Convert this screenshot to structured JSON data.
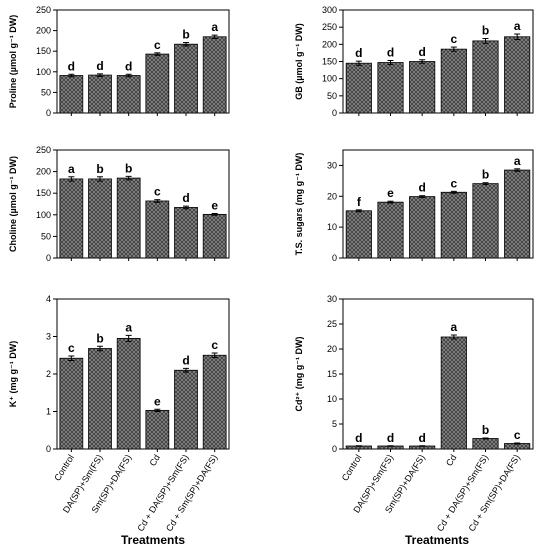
{
  "colors": {
    "bar_fill": "#8a8a8a",
    "bar_hatch": "#3a3a3a",
    "axis": "#000000"
  },
  "categories": [
    "Control",
    "DA(SP)+Sm(FS)",
    "Sm(SP)+DA(FS)",
    "Cd",
    "Cd + DA(SP)+Sm(FS)",
    "Cd + Sm(SP)+DA(FS)"
  ],
  "x_title": "Treatments",
  "chart_data": [
    {
      "type": "bar",
      "ylabel": "Proline (µmol g⁻¹ DW)",
      "ylim": [
        0,
        250
      ],
      "yticks": [
        0,
        50,
        100,
        150,
        200,
        250
      ],
      "categories": [
        "Control",
        "DA(SP)+Sm(FS)",
        "Sm(SP)+DA(FS)",
        "Cd",
        "Cd + DA(SP)+Sm(FS)",
        "Cd + Sm(SP)+DA(FS)"
      ],
      "values": [
        91,
        92,
        91,
        143,
        167,
        185
      ],
      "errors": [
        3,
        3,
        3,
        3,
        4,
        4
      ],
      "significance": [
        "d",
        "d",
        "d",
        "c",
        "b",
        "a"
      ]
    },
    {
      "type": "bar",
      "ylabel": "GB (µmol g⁻¹ DW)",
      "ylim": [
        0,
        300
      ],
      "yticks": [
        0,
        50,
        100,
        150,
        200,
        250,
        300
      ],
      "categories": [
        "Control",
        "DA(SP)+Sm(FS)",
        "Sm(SP)+DA(FS)",
        "Cd",
        "Cd + DA(SP)+Sm(FS)",
        "Cd + Sm(SP)+DA(FS)"
      ],
      "values": [
        145,
        147,
        150,
        186,
        210,
        222
      ],
      "errors": [
        6,
        6,
        5,
        6,
        7,
        8
      ],
      "significance": [
        "d",
        "d",
        "d",
        "c",
        "b",
        "a"
      ]
    },
    {
      "type": "bar",
      "ylabel": "Choline (µmol g⁻¹ DW)",
      "ylim": [
        0,
        250
      ],
      "yticks": [
        0,
        50,
        100,
        150,
        200,
        250
      ],
      "categories": [
        "Control",
        "DA(SP)+Sm(FS)",
        "Sm(SP)+DA(FS)",
        "Cd",
        "Cd + DA(SP)+Sm(FS)",
        "Cd + Sm(SP)+DA(FS)"
      ],
      "values": [
        183,
        183,
        185,
        132,
        117,
        101
      ],
      "errors": [
        5,
        5,
        4,
        3,
        3,
        2
      ],
      "significance": [
        "a",
        "b",
        "b",
        "c",
        "d",
        "e"
      ]
    },
    {
      "type": "bar",
      "ylabel": "T.S. sugars (mg g⁻¹ DW)",
      "ylim": [
        0,
        35
      ],
      "yticks": [
        0,
        10,
        20,
        30
      ],
      "categories": [
        "Control",
        "DA(SP)+Sm(FS)",
        "Sm(SP)+DA(FS)",
        "Cd",
        "Cd + DA(SP)+Sm(FS)",
        "Cd + Sm(SP)+DA(FS)"
      ],
      "values": [
        15.3,
        18.1,
        19.9,
        21.3,
        24.1,
        28.5
      ],
      "errors": [
        0.3,
        0.3,
        0.3,
        0.3,
        0.3,
        0.4
      ],
      "significance": [
        "f",
        "e",
        "d",
        "c",
        "b",
        "a"
      ]
    },
    {
      "type": "bar",
      "ylabel": "K⁺ (mg g⁻¹ DW)",
      "ylim": [
        0,
        4
      ],
      "yticks": [
        0,
        1,
        2,
        3,
        4
      ],
      "categories": [
        "Control",
        "DA(SP)+Sm(FS)",
        "Sm(SP)+DA(FS)",
        "Cd",
        "Cd + DA(SP)+Sm(FS)",
        "Cd + Sm(SP)+DA(FS)"
      ],
      "values": [
        2.42,
        2.68,
        2.95,
        1.03,
        2.1,
        2.5
      ],
      "errors": [
        0.06,
        0.06,
        0.08,
        0.03,
        0.05,
        0.06
      ],
      "significance": [
        "c",
        "b",
        "a",
        "e",
        "d",
        "c"
      ]
    },
    {
      "type": "bar",
      "ylabel": "Cd²⁺ (mg g⁻¹ DW)",
      "ylim": [
        0,
        30
      ],
      "yticks": [
        0,
        5,
        10,
        15,
        20,
        25,
        30
      ],
      "categories": [
        "Control",
        "DA(SP)+Sm(FS)",
        "Sm(SP)+DA(FS)",
        "Cd",
        "Cd + DA(SP)+Sm(FS)",
        "Cd + Sm(SP)+DA(FS)"
      ],
      "values": [
        0.6,
        0.6,
        0.6,
        22.4,
        2.1,
        1.1
      ],
      "errors": [
        0.05,
        0.05,
        0.05,
        0.4,
        0.1,
        0.1
      ],
      "significance": [
        "d",
        "d",
        "d",
        "a",
        "b",
        "c"
      ]
    }
  ]
}
